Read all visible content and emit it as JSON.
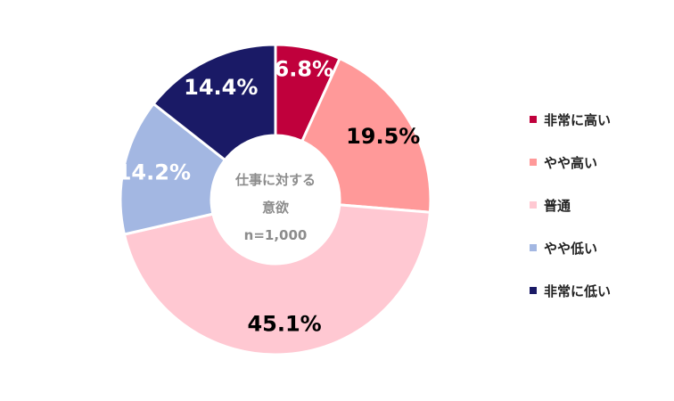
{
  "chart_data": {
    "type": "pie",
    "style": "donut",
    "categories": [
      "非常に高い",
      "やや高い",
      "普通",
      "やや低い",
      "非常に低い"
    ],
    "values": [
      6.8,
      19.5,
      45.1,
      14.2,
      14.4
    ],
    "value_labels": [
      "6.8%",
      "19.5%",
      "45.1%",
      "14.2%",
      "14.4%"
    ],
    "colors": [
      "#c0003c",
      "#ff9999",
      "#ffc8d2",
      "#a3b7e2",
      "#1a1a66"
    ],
    "label_colors": [
      "#ffffff",
      "#000000",
      "#000000",
      "#ffffff",
      "#ffffff"
    ],
    "center_label": [
      "仕事に対する",
      "意欲",
      "n=1,000"
    ],
    "legend_placement": "right",
    "start_angle_deg": 0,
    "direction": "clockwise"
  }
}
